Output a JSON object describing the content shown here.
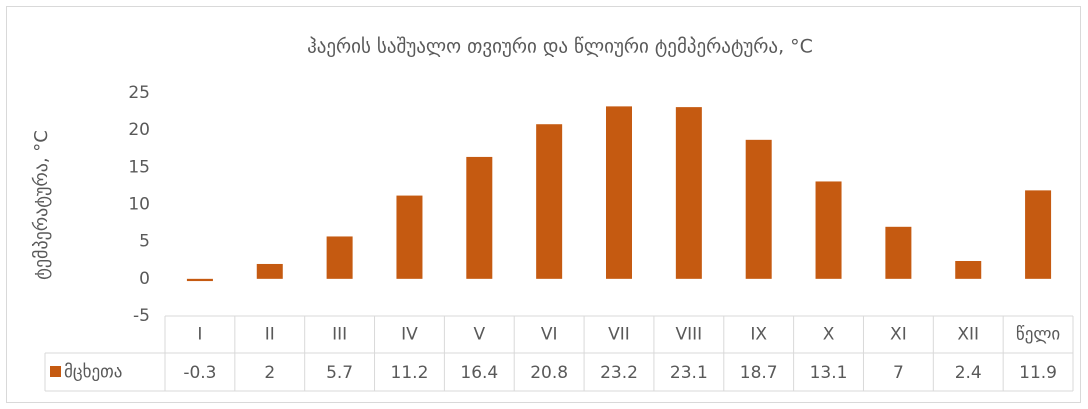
{
  "chart_data": {
    "type": "bar",
    "title": "ჰაერის საშუალო თვიური და წლიური ტემპერატურა, °C",
    "y_label": "ტემპერატურა, °C",
    "categories": [
      "I",
      "II",
      "III",
      "IV",
      "V",
      "VI",
      "VII",
      "VIII",
      "IX",
      "X",
      "XI",
      "XII",
      "წელი"
    ],
    "series": [
      {
        "name": "მცხეთა",
        "color": "#c55a11",
        "values": [
          -0.3,
          2,
          5.7,
          11.2,
          16.4,
          20.8,
          23.2,
          23.1,
          18.7,
          13.1,
          7,
          2.4,
          11.9
        ]
      }
    ],
    "ylim": [
      -5,
      25
    ],
    "yticks": [
      -5,
      0,
      5,
      10,
      15,
      20,
      25
    ],
    "grid": false,
    "data_table": true
  }
}
